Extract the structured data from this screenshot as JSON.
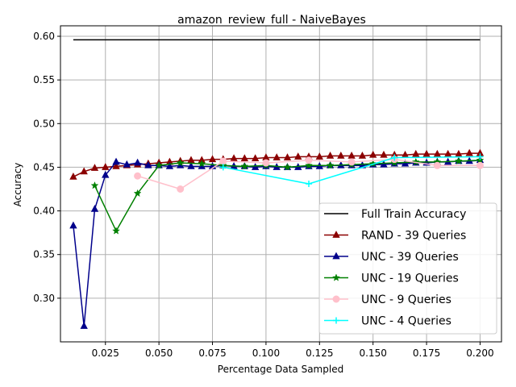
{
  "chart_data": {
    "type": "line",
    "title": "amazon_review_full - NaiveBayes",
    "xlabel": "Percentage Data Sampled",
    "ylabel": "Accuracy",
    "xlim": [
      0.004,
      0.21
    ],
    "ylim": [
      0.25,
      0.612
    ],
    "xticks": [
      0.025,
      0.05,
      0.075,
      0.1,
      0.125,
      0.15,
      0.175,
      0.2
    ],
    "xtick_labels": [
      "0.025",
      "0.050",
      "0.075",
      "0.100",
      "0.125",
      "0.150",
      "0.175",
      "0.200"
    ],
    "yticks": [
      0.3,
      0.35,
      0.4,
      0.45,
      0.5,
      0.55,
      0.6
    ],
    "ytick_labels": [
      "0.30",
      "0.35",
      "0.40",
      "0.45",
      "0.50",
      "0.55",
      "0.60"
    ],
    "grid": true,
    "legend_position": "lower-right",
    "series": [
      {
        "name": "Full Train Accuracy",
        "color": "#000000",
        "marker": "none",
        "x": [
          0.01,
          0.2
        ],
        "y": [
          0.596,
          0.596
        ]
      },
      {
        "name": "RAND - 39 Queries",
        "color": "#8b0000",
        "marker": "triangle",
        "x": [
          0.01,
          0.015,
          0.02,
          0.025,
          0.03,
          0.035,
          0.04,
          0.045,
          0.05,
          0.055,
          0.06,
          0.065,
          0.07,
          0.075,
          0.08,
          0.085,
          0.09,
          0.095,
          0.1,
          0.105,
          0.11,
          0.115,
          0.12,
          0.125,
          0.13,
          0.135,
          0.14,
          0.145,
          0.15,
          0.155,
          0.16,
          0.165,
          0.17,
          0.175,
          0.18,
          0.185,
          0.19,
          0.195,
          0.2
        ],
        "y": [
          0.439,
          0.445,
          0.449,
          0.45,
          0.451,
          0.452,
          0.453,
          0.454,
          0.455,
          0.456,
          0.457,
          0.458,
          0.458,
          0.459,
          0.459,
          0.46,
          0.46,
          0.46,
          0.461,
          0.461,
          0.461,
          0.462,
          0.462,
          0.462,
          0.463,
          0.463,
          0.463,
          0.463,
          0.464,
          0.464,
          0.464,
          0.464,
          0.465,
          0.465,
          0.465,
          0.465,
          0.465,
          0.466,
          0.466
        ]
      },
      {
        "name": "UNC - 39 Queries",
        "color": "#00008b",
        "marker": "triangle",
        "x": [
          0.01,
          0.015,
          0.02,
          0.025,
          0.03,
          0.035,
          0.04,
          0.045,
          0.05,
          0.055,
          0.06,
          0.065,
          0.07,
          0.075,
          0.08,
          0.085,
          0.09,
          0.095,
          0.1,
          0.105,
          0.11,
          0.115,
          0.12,
          0.125,
          0.13,
          0.135,
          0.14,
          0.145,
          0.15,
          0.155,
          0.16,
          0.165,
          0.17,
          0.175,
          0.18,
          0.185,
          0.19,
          0.195,
          0.2
        ],
        "y": [
          0.383,
          0.268,
          0.402,
          0.441,
          0.456,
          0.453,
          0.455,
          0.452,
          0.452,
          0.451,
          0.452,
          0.451,
          0.451,
          0.451,
          0.452,
          0.451,
          0.451,
          0.45,
          0.451,
          0.45,
          0.45,
          0.45,
          0.451,
          0.451,
          0.452,
          0.452,
          0.452,
          0.452,
          0.453,
          0.453,
          0.454,
          0.454,
          0.455,
          0.455,
          0.456,
          0.456,
          0.457,
          0.457,
          0.458
        ]
      },
      {
        "name": "UNC - 19 Queries",
        "color": "#008000",
        "marker": "star",
        "x": [
          0.02,
          0.03,
          0.04,
          0.05,
          0.06,
          0.07,
          0.08,
          0.09,
          0.1,
          0.11,
          0.12,
          0.13,
          0.14,
          0.15,
          0.16,
          0.17,
          0.18,
          0.19,
          0.2
        ],
        "y": [
          0.429,
          0.377,
          0.42,
          0.452,
          0.455,
          0.454,
          0.452,
          0.451,
          0.452,
          0.45,
          0.452,
          0.452,
          0.453,
          0.454,
          0.455,
          0.456,
          0.456,
          0.457,
          0.458
        ]
      },
      {
        "name": "UNC - 9 Queries",
        "color": "#ffc0cb",
        "marker": "circle",
        "x": [
          0.04,
          0.06,
          0.08,
          0.1,
          0.12,
          0.14,
          0.16,
          0.18,
          0.2
        ],
        "y": [
          0.44,
          0.425,
          0.457,
          0.455,
          0.458,
          0.456,
          0.459,
          0.452,
          0.452
        ]
      },
      {
        "name": "UNC - 4 Queries",
        "color": "#00ffff",
        "marker": "plus",
        "x": [
          0.08,
          0.12,
          0.16,
          0.2
        ],
        "y": [
          0.45,
          0.431,
          0.461,
          0.462
        ]
      }
    ]
  }
}
